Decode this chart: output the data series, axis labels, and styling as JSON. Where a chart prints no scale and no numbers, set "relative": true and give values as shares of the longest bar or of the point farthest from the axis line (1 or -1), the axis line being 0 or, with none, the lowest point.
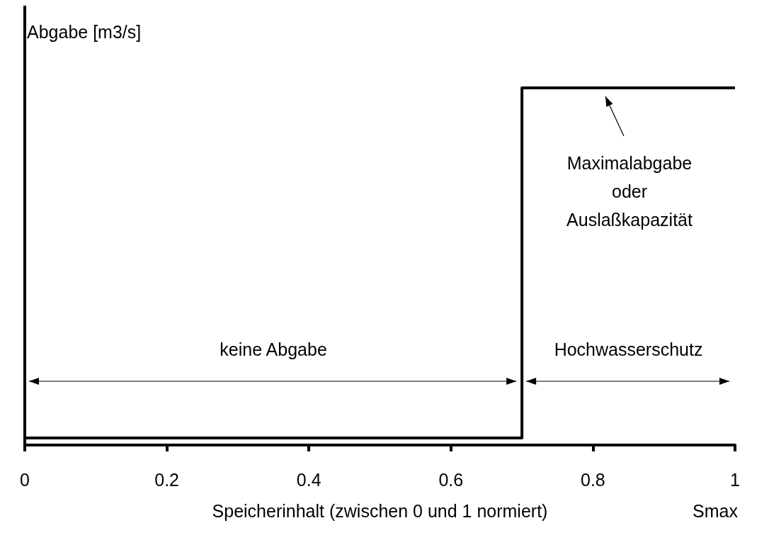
{
  "chart_data": {
    "type": "step",
    "relative": true,
    "x": [
      0,
      0.7,
      1
    ],
    "values": [
      0.02,
      1,
      1
    ],
    "color": "#000000",
    "xlim": [
      0,
      1
    ],
    "xticks": [
      0,
      0.2,
      0.4,
      0.6,
      0.8,
      1
    ],
    "xlabel": "Speicherinhalt (zwischen 0 und 1 normiert)",
    "ylabel": "Abgabe [m3/s]",
    "marker": "none",
    "line_style": "solid",
    "annotations": [
      "keine Abgabe",
      "Hochwasserschutz",
      "Maximalabgabe\noder\nAuslaßkapazität",
      "Smax"
    ]
  }
}
